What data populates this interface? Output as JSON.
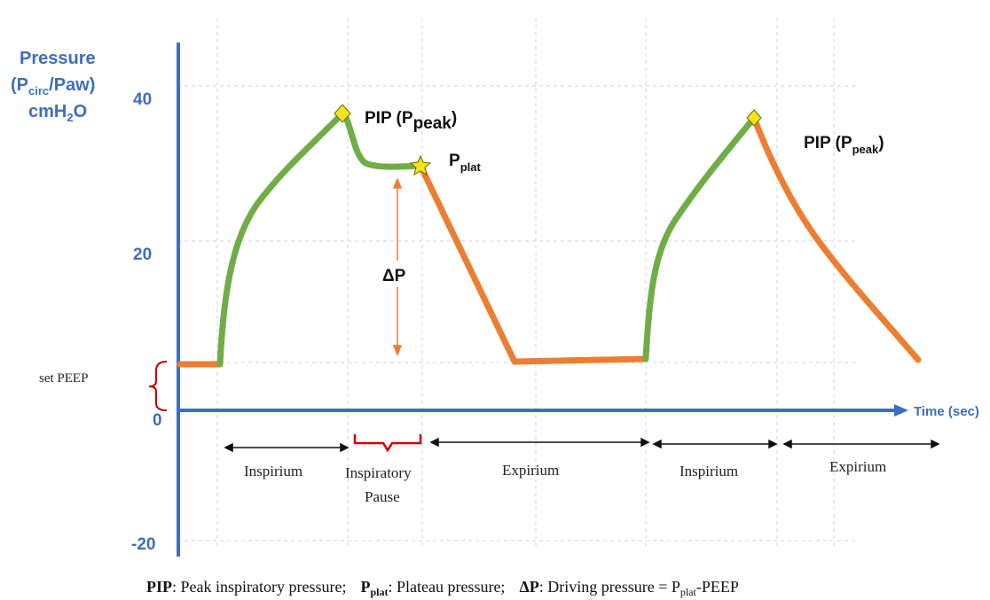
{
  "axis": {
    "title_line1": "Pressure",
    "title_line2_a": "(P",
    "title_line2_sub": "circ",
    "title_line2_b": "/Paw)",
    "title_line3_a": "cmH",
    "title_line3_sub": "2",
    "title_line3_b": "O",
    "ticks": [
      "40",
      "20",
      "0",
      "-20"
    ],
    "time_label": "Time (sec)"
  },
  "annotations": {
    "pip1_main": "PIP (P",
    "pip1_sub": "peak",
    "pip1_close": ")",
    "pplat_main": "P",
    "pplat_sub": "plat",
    "delta_p": "ΔP",
    "pip2_main": "PIP (P",
    "pip2_sub": "peak",
    "pip2_close": ")",
    "set_peep": "set PEEP"
  },
  "phases": {
    "inspirium1": "Inspirium",
    "pause_line1": "Inspiratory",
    "pause_line2": "Pause",
    "expirium1": "Expirium",
    "inspirium2": "Inspirium",
    "expirium2": "Expirium"
  },
  "legend": {
    "pip_abbr": "PIP",
    "pip_text": ": Peak inspiratory pressure;",
    "pplat_abbr": "P",
    "pplat_sub": "plat",
    "pplat_text": ": Plateau pressure;",
    "dp_abbr": "ΔP",
    "dp_text_a": ": Driving pressure = P",
    "dp_sub": "plat",
    "dp_text_b": "-PEEP"
  },
  "colors": {
    "inspiration": "#70ad47",
    "expiration": "#ed7d31",
    "axis": "#3d6ebf",
    "peep_brace": "#c00000",
    "marker": "#f4e11d"
  }
}
